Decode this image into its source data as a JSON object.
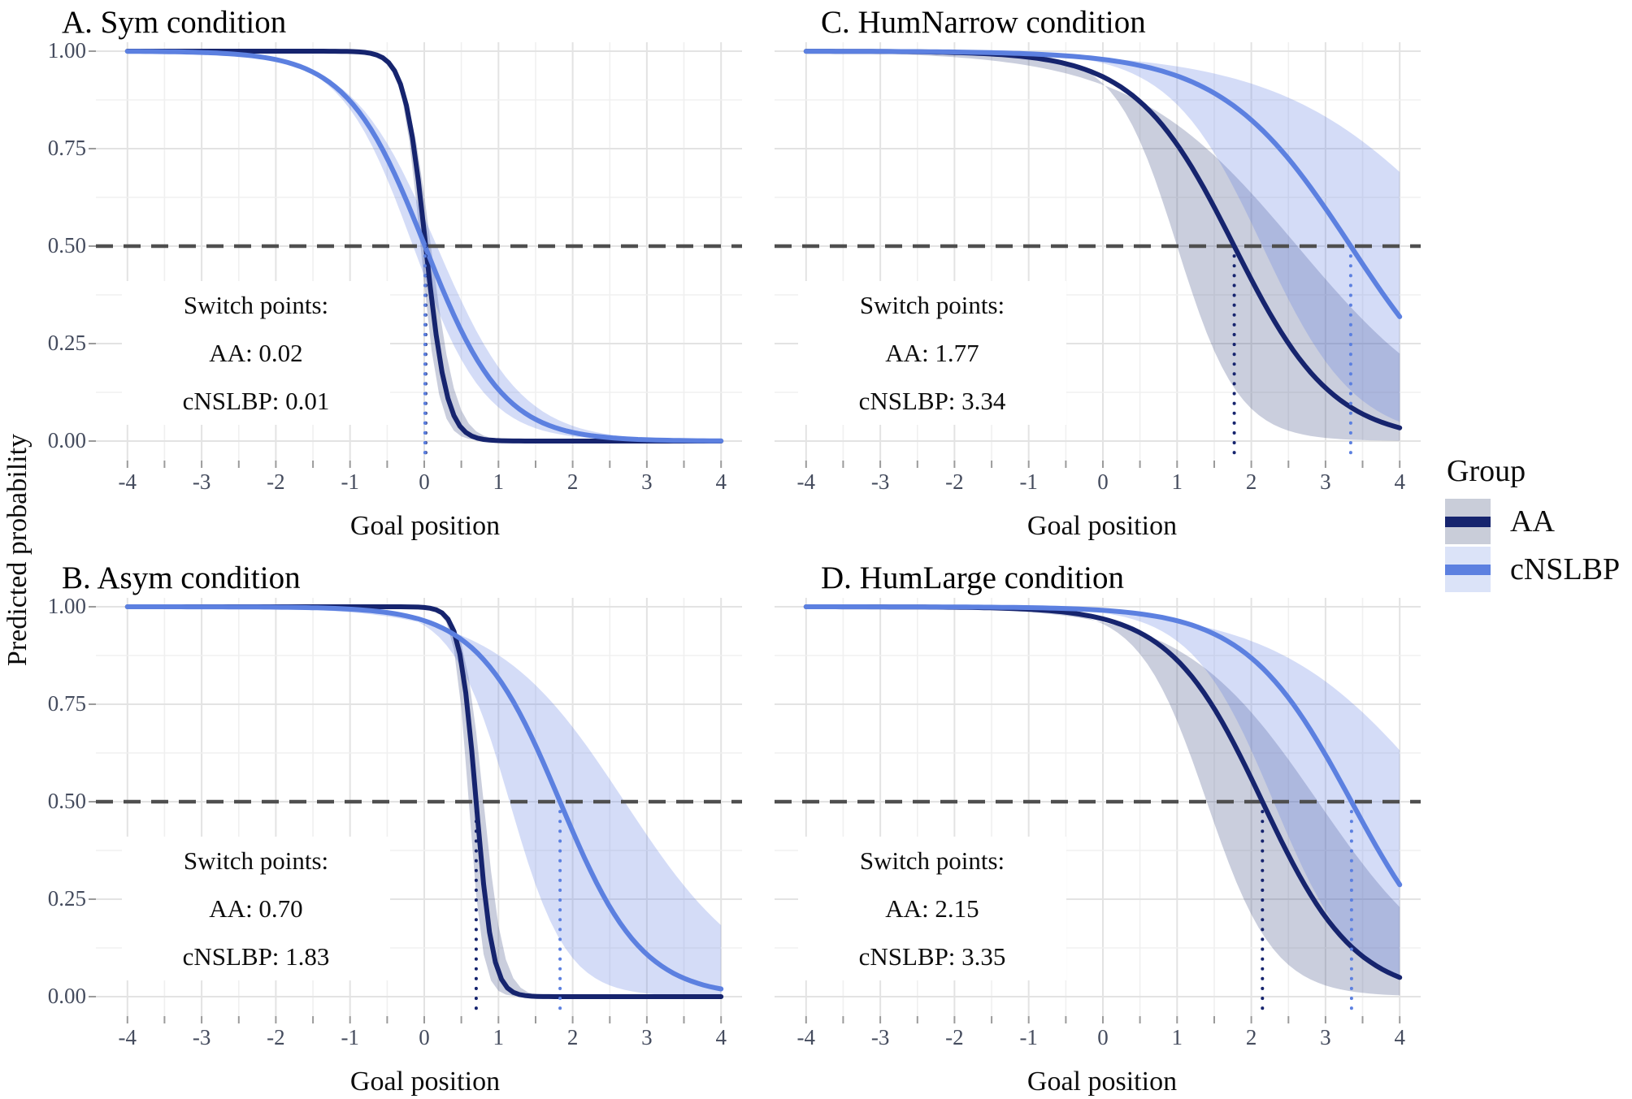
{
  "chart_data": {
    "type": "line",
    "x": {
      "label": "Goal position",
      "ticks": [
        -4,
        -3,
        -2,
        -1,
        0,
        1,
        2,
        3,
        4
      ],
      "range": [
        -4,
        4
      ]
    },
    "y": {
      "label": "Predicted probability",
      "ticks": [
        {
          "label": "1.00",
          "p": 1.0
        },
        {
          "label": "0.75",
          "p": 0.75
        },
        {
          "label": "0.50",
          "p": 0.5
        },
        {
          "label": "0.25",
          "p": 0.25
        },
        {
          "label": "0.00",
          "p": 0.0
        }
      ],
      "range": [
        0,
        1
      ]
    },
    "reference_line_y": 0.5,
    "grid": "major and minor, light gray on white",
    "legend": {
      "title": "Group",
      "entries": [
        {
          "label": "AA",
          "line_color": "#16246e",
          "band_color": "#c9cdd9"
        },
        {
          "label": "cNSLBP",
          "line_color": "#5c80e0",
          "band_color": "#dbe3f8"
        }
      ],
      "position": "right"
    },
    "panels": [
      {
        "id": "A",
        "title": "A. Sym condition",
        "annotation": [
          "Switch points:",
          "AA: 0.02",
          "cNSLBP: 0.01"
        ],
        "series": [
          {
            "name": "AA",
            "switch_point": 0.02,
            "curve": {
              "x0": 0.02,
              "k": 7
            },
            "band": {
              "upper": {
                "x0": 0.09,
                "k": 6
              },
              "lower": {
                "x0": -0.05,
                "k": 8
              }
            }
          },
          {
            "name": "cNSLBP",
            "switch_point": 0.01,
            "curve": {
              "x0": 0.01,
              "k": 1.9
            },
            "band": {
              "upper": {
                "x0": 0.17,
                "k": 1.75
              },
              "lower": {
                "x0": -0.15,
                "k": 2.05
              }
            }
          }
        ]
      },
      {
        "id": "B",
        "title": "B. Asym condition",
        "annotation": [
          "Switch points:",
          "AA: 0.70",
          "cNSLBP: 1.83"
        ],
        "series": [
          {
            "name": "AA",
            "switch_point": 0.7,
            "curve": {
              "x0": 0.7,
              "k": 9
            },
            "band": {
              "upper": {
                "x0": 0.8,
                "k": 7.5
              },
              "lower": {
                "x0": 0.6,
                "k": 10.5
              }
            }
          },
          {
            "name": "cNSLBP",
            "switch_point": 1.83,
            "curve": {
              "x0": 1.83,
              "k": 1.8
            },
            "band": {
              "upper": {
                "x0": 2.7,
                "k": 1.15
              },
              "lower": {
                "x0": 1.15,
                "k": 2.6
              }
            }
          }
        ]
      },
      {
        "id": "C",
        "title": "C. HumNarrow condition",
        "annotation": [
          "Switch points:",
          "AA: 1.77",
          "cNSLBP: 3.34"
        ],
        "series": [
          {
            "name": "AA",
            "switch_point": 1.77,
            "curve": {
              "x0": 1.77,
              "k": 1.5
            },
            "band": {
              "upper": {
                "x0": 2.62,
                "k": 0.9
              },
              "lower": {
                "x0": 1.0,
                "k": 2.4
              }
            }
          },
          {
            "name": "cNSLBP",
            "switch_point": 3.34,
            "curve": {
              "x0": 3.34,
              "k": 1.15
            },
            "band": {
              "upper": {
                "x0": 5.0,
                "k": 0.8
              },
              "lower": {
                "x0": 2.15,
                "k": 1.6
              }
            }
          }
        ]
      },
      {
        "id": "D",
        "title": "D. HumLarge condition",
        "annotation": [
          "Switch points:",
          "AA: 2.15",
          "cNSLBP: 3.35"
        ],
        "series": [
          {
            "name": "AA",
            "switch_point": 2.15,
            "curve": {
              "x0": 2.15,
              "k": 1.6
            },
            "band": {
              "upper": {
                "x0": 2.9,
                "k": 1.1
              },
              "lower": {
                "x0": 1.4,
                "k": 2.2
              }
            }
          },
          {
            "name": "cNSLBP",
            "switch_point": 3.35,
            "curve": {
              "x0": 3.35,
              "k": 1.4
            },
            "band": {
              "upper": {
                "x0": 4.6,
                "k": 0.9
              },
              "lower": {
                "x0": 2.3,
                "k": 1.8
              }
            }
          }
        ]
      }
    ],
    "colors": {
      "aa_line": "#16246e",
      "aa_band_rgba": "rgba(45,60,120,0.25)",
      "cnslbp_line": "#5c80e0",
      "cnslbp_band_rgba": "rgba(100,130,225,0.28)",
      "reference_dash": "#4f4f4f",
      "grid_major": "#e3e3e3",
      "grid_minor": "#f0f0f0",
      "axis_tick": "#9b9b9b",
      "tick_label": "#454c5e"
    }
  }
}
